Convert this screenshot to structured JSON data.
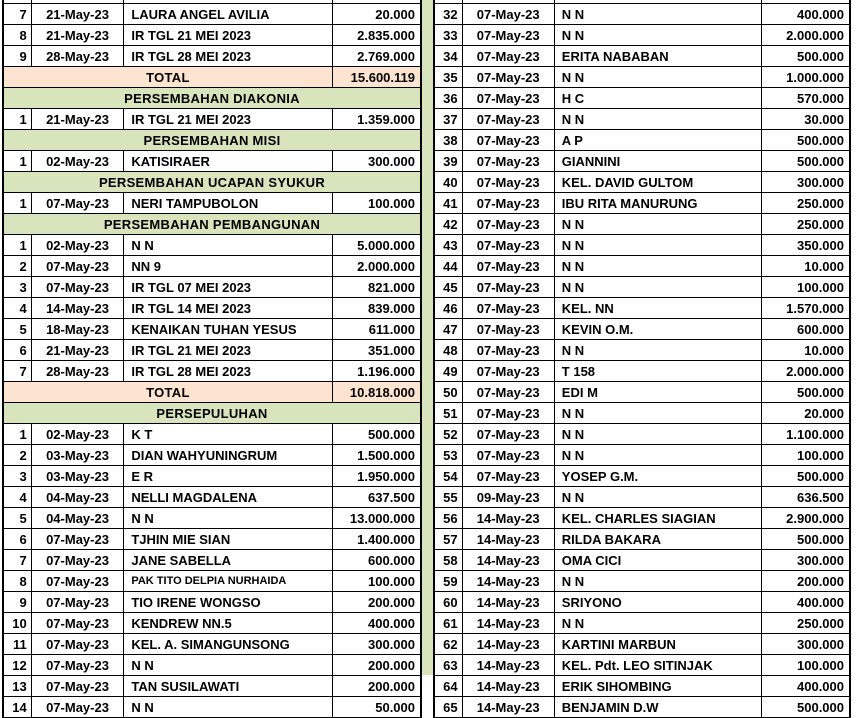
{
  "colors": {
    "section_header_bg": "#d8e4bc",
    "total_row_bg": "#fce4d0",
    "gap_column_bg": "#d8e4bc",
    "border": "#000000",
    "text": "#000000"
  },
  "left_table": {
    "rows": [
      {
        "type": "spacer"
      },
      {
        "type": "entry",
        "no": "7",
        "date": "21-May-23",
        "name": "LAURA ANGEL AVILIA",
        "amount": "20.000"
      },
      {
        "type": "entry",
        "no": "8",
        "date": "21-May-23",
        "name": "IR TGL 21 MEI 2023",
        "amount": "2.835.000"
      },
      {
        "type": "entry",
        "no": "9",
        "date": "28-May-23",
        "name": "IR TGL 28 MEI 2023",
        "amount": "2.769.000"
      },
      {
        "type": "total",
        "label": "TOTAL",
        "amount": "15.600.119"
      },
      {
        "type": "section",
        "label": "PERSEMBAHAN DIAKONIA"
      },
      {
        "type": "entry",
        "no": "1",
        "date": "21-May-23",
        "name": "IR TGL 21 MEI 2023",
        "amount": "1.359.000"
      },
      {
        "type": "section",
        "label": "PERSEMBAHAN MISI"
      },
      {
        "type": "entry",
        "no": "1",
        "date": "02-May-23",
        "name": "KATISIRAER",
        "amount": "300.000"
      },
      {
        "type": "section",
        "label": "PERSEMBAHAN UCAPAN SYUKUR"
      },
      {
        "type": "entry",
        "no": "1",
        "date": "07-May-23",
        "name": "NERI TAMPUBOLON",
        "amount": "100.000"
      },
      {
        "type": "section",
        "label": "PERSEMBAHAN PEMBANGUNAN"
      },
      {
        "type": "entry",
        "no": "1",
        "date": "02-May-23",
        "name": "N N",
        "amount": "5.000.000"
      },
      {
        "type": "entry",
        "no": "2",
        "date": "07-May-23",
        "name": "NN 9",
        "amount": "2.000.000"
      },
      {
        "type": "entry",
        "no": "3",
        "date": "07-May-23",
        "name": "IR TGL 07 MEI 2023",
        "amount": "821.000"
      },
      {
        "type": "entry",
        "no": "4",
        "date": "14-May-23",
        "name": "IR TGL 14 MEI 2023",
        "amount": "839.000"
      },
      {
        "type": "entry",
        "no": "5",
        "date": "18-May-23",
        "name": "KENAIKAN TUHAN YESUS",
        "amount": "611.000"
      },
      {
        "type": "entry",
        "no": "6",
        "date": "21-May-23",
        "name": "IR TGL 21 MEI 2023",
        "amount": "351.000"
      },
      {
        "type": "entry",
        "no": "7",
        "date": "28-May-23",
        "name": "IR TGL 28 MEI 2023",
        "amount": "1.196.000"
      },
      {
        "type": "total",
        "label": "TOTAL",
        "amount": "10.818.000"
      },
      {
        "type": "section",
        "label": "PERSEPULUHAN"
      },
      {
        "type": "entry",
        "no": "1",
        "date": "02-May-23",
        "name": "K T",
        "amount": "500.000"
      },
      {
        "type": "entry",
        "no": "2",
        "date": "03-May-23",
        "name": "DIAN WAHYUNINGRUM",
        "amount": "1.500.000"
      },
      {
        "type": "entry",
        "no": "3",
        "date": "03-May-23",
        "name": "E R",
        "amount": "1.950.000"
      },
      {
        "type": "entry",
        "no": "4",
        "date": "04-May-23",
        "name": "NELLI MAGDALENA",
        "amount": "637.500"
      },
      {
        "type": "entry",
        "no": "5",
        "date": "04-May-23",
        "name": "N N",
        "amount": "13.000.000"
      },
      {
        "type": "entry",
        "no": "6",
        "date": "07-May-23",
        "name": "TJHIN MIE SIAN",
        "amount": "1.400.000"
      },
      {
        "type": "entry",
        "no": "7",
        "date": "07-May-23",
        "name": "JANE SABELLA",
        "amount": "600.000"
      },
      {
        "type": "entry",
        "no": "8",
        "date": "07-May-23",
        "name": "PAK TITO DELPIA NURHAIDA",
        "amount": "100.000",
        "small": true
      },
      {
        "type": "entry",
        "no": "9",
        "date": "07-May-23",
        "name": "TIO IRENE WONGSO",
        "amount": "200.000"
      },
      {
        "type": "entry",
        "no": "10",
        "date": "07-May-23",
        "name": "KENDREW NN.5",
        "amount": "400.000"
      },
      {
        "type": "entry",
        "no": "11",
        "date": "07-May-23",
        "name": "KEL. A. SIMANGUNSONG",
        "amount": "300.000"
      },
      {
        "type": "entry",
        "no": "12",
        "date": "07-May-23",
        "name": "N N",
        "amount": "200.000"
      },
      {
        "type": "entry",
        "no": "13",
        "date": "07-May-23",
        "name": "TAN SUSILAWATI",
        "amount": "200.000"
      },
      {
        "type": "entry",
        "no": "14",
        "date": "07-May-23",
        "name": "N N",
        "amount": "50.000"
      }
    ]
  },
  "right_table": {
    "rows": [
      {
        "type": "spacer"
      },
      {
        "type": "entry",
        "no": "32",
        "date": "07-May-23",
        "name": "N N",
        "amount": "400.000"
      },
      {
        "type": "entry",
        "no": "33",
        "date": "07-May-23",
        "name": "N N",
        "amount": "2.000.000"
      },
      {
        "type": "entry",
        "no": "34",
        "date": "07-May-23",
        "name": "ERITA NABABAN",
        "amount": "500.000"
      },
      {
        "type": "entry",
        "no": "35",
        "date": "07-May-23",
        "name": "N N",
        "amount": "1.000.000"
      },
      {
        "type": "entry",
        "no": "36",
        "date": "07-May-23",
        "name": "H C",
        "amount": "570.000"
      },
      {
        "type": "entry",
        "no": "37",
        "date": "07-May-23",
        "name": "N N",
        "amount": "30.000"
      },
      {
        "type": "entry",
        "no": "38",
        "date": "07-May-23",
        "name": "A P",
        "amount": "500.000"
      },
      {
        "type": "entry",
        "no": "39",
        "date": "07-May-23",
        "name": "GIANNINI",
        "amount": "500.000"
      },
      {
        "type": "entry",
        "no": "40",
        "date": "07-May-23",
        "name": "KEL. DAVID GULTOM",
        "amount": "300.000"
      },
      {
        "type": "entry",
        "no": "41",
        "date": "07-May-23",
        "name": "IBU RITA MANURUNG",
        "amount": "250.000"
      },
      {
        "type": "entry",
        "no": "42",
        "date": "07-May-23",
        "name": "N N",
        "amount": "250.000"
      },
      {
        "type": "entry",
        "no": "43",
        "date": "07-May-23",
        "name": "N N",
        "amount": "350.000"
      },
      {
        "type": "entry",
        "no": "44",
        "date": "07-May-23",
        "name": "N N",
        "amount": "10.000"
      },
      {
        "type": "entry",
        "no": "45",
        "date": "07-May-23",
        "name": "N N",
        "amount": "100.000"
      },
      {
        "type": "entry",
        "no": "46",
        "date": "07-May-23",
        "name": "KEL. NN",
        "amount": "1.570.000"
      },
      {
        "type": "entry",
        "no": "47",
        "date": "07-May-23",
        "name": "KEVIN O.M.",
        "amount": "600.000"
      },
      {
        "type": "entry",
        "no": "48",
        "date": "07-May-23",
        "name": "N N",
        "amount": "10.000"
      },
      {
        "type": "entry",
        "no": "49",
        "date": "07-May-23",
        "name": "T 158",
        "amount": "2.000.000"
      },
      {
        "type": "entry",
        "no": "50",
        "date": "07-May-23",
        "name": "EDI M",
        "amount": "500.000"
      },
      {
        "type": "entry",
        "no": "51",
        "date": "07-May-23",
        "name": "N N",
        "amount": "20.000"
      },
      {
        "type": "entry",
        "no": "52",
        "date": "07-May-23",
        "name": "N N",
        "amount": "1.100.000"
      },
      {
        "type": "entry",
        "no": "53",
        "date": "07-May-23",
        "name": "N N",
        "amount": "100.000"
      },
      {
        "type": "entry",
        "no": "54",
        "date": "07-May-23",
        "name": "YOSEP G.M.",
        "amount": "500.000"
      },
      {
        "type": "entry",
        "no": "55",
        "date": "09-May-23",
        "name": "N N",
        "amount": "636.500"
      },
      {
        "type": "entry",
        "no": "56",
        "date": "14-May-23",
        "name": "KEL. CHARLES SIAGIAN",
        "amount": "2.900.000"
      },
      {
        "type": "entry",
        "no": "57",
        "date": "14-May-23",
        "name": "RILDA BAKARA",
        "amount": "500.000"
      },
      {
        "type": "entry",
        "no": "58",
        "date": "14-May-23",
        "name": "OMA CICI",
        "amount": "300.000"
      },
      {
        "type": "entry",
        "no": "59",
        "date": "14-May-23",
        "name": "N N",
        "amount": "200.000"
      },
      {
        "type": "entry",
        "no": "60",
        "date": "14-May-23",
        "name": "SRIYONO",
        "amount": "400.000"
      },
      {
        "type": "entry",
        "no": "61",
        "date": "14-May-23",
        "name": "N N",
        "amount": "250.000"
      },
      {
        "type": "entry",
        "no": "62",
        "date": "14-May-23",
        "name": "KARTINI MARBUN",
        "amount": "300.000"
      },
      {
        "type": "entry",
        "no": "63",
        "date": "14-May-23",
        "name": "KEL. Pdt. LEO SITINJAK",
        "amount": "100.000"
      },
      {
        "type": "entry",
        "no": "64",
        "date": "14-May-23",
        "name": "ERIK SIHOMBING",
        "amount": "400.000"
      },
      {
        "type": "entry",
        "no": "65",
        "date": "14-May-23",
        "name": "BENJAMIN D.W",
        "amount": "500.000"
      }
    ]
  }
}
